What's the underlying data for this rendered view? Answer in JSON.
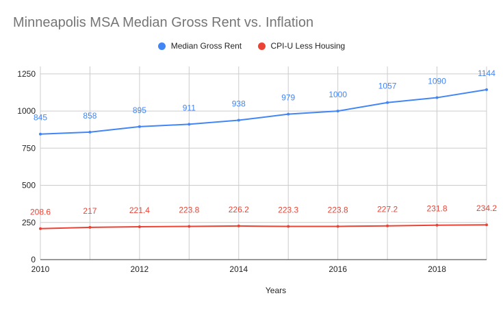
{
  "chart_data": {
    "type": "line",
    "title": "Minneapolis MSA Median Gross Rent vs. Inflation",
    "xlabel": "Years",
    "ylabel": "",
    "x": [
      2010,
      2011,
      2012,
      2013,
      2014,
      2015,
      2016,
      2017,
      2018,
      2019
    ],
    "xlim": [
      2010,
      2019
    ],
    "xticks": [
      "2010",
      "2012",
      "2014",
      "2016",
      "2018"
    ],
    "ylim": [
      0,
      1300
    ],
    "yticks": [
      "0",
      "250",
      "500",
      "750",
      "1000",
      "1250"
    ],
    "grid": true,
    "legend_position": "top",
    "series": [
      {
        "name": "Median Gross Rent",
        "color": "#4285f4",
        "values": [
          845,
          858,
          895,
          911,
          938,
          979,
          1000,
          1057,
          1090,
          1144
        ],
        "labels": [
          "845",
          "858",
          "895",
          "911",
          "938",
          "979",
          "1000",
          "1057",
          "1090",
          "1144"
        ]
      },
      {
        "name": "CPI-U Less Housing",
        "color": "#ea4335",
        "values": [
          208.6,
          217,
          221.4,
          223.8,
          226.2,
          223.3,
          223.8,
          227.2,
          231.8,
          234.2
        ],
        "labels": [
          "208.6",
          "217",
          "221.4",
          "223.8",
          "226.2",
          "223.3",
          "223.8",
          "227.2",
          "231.8",
          "234.2"
        ]
      }
    ]
  }
}
